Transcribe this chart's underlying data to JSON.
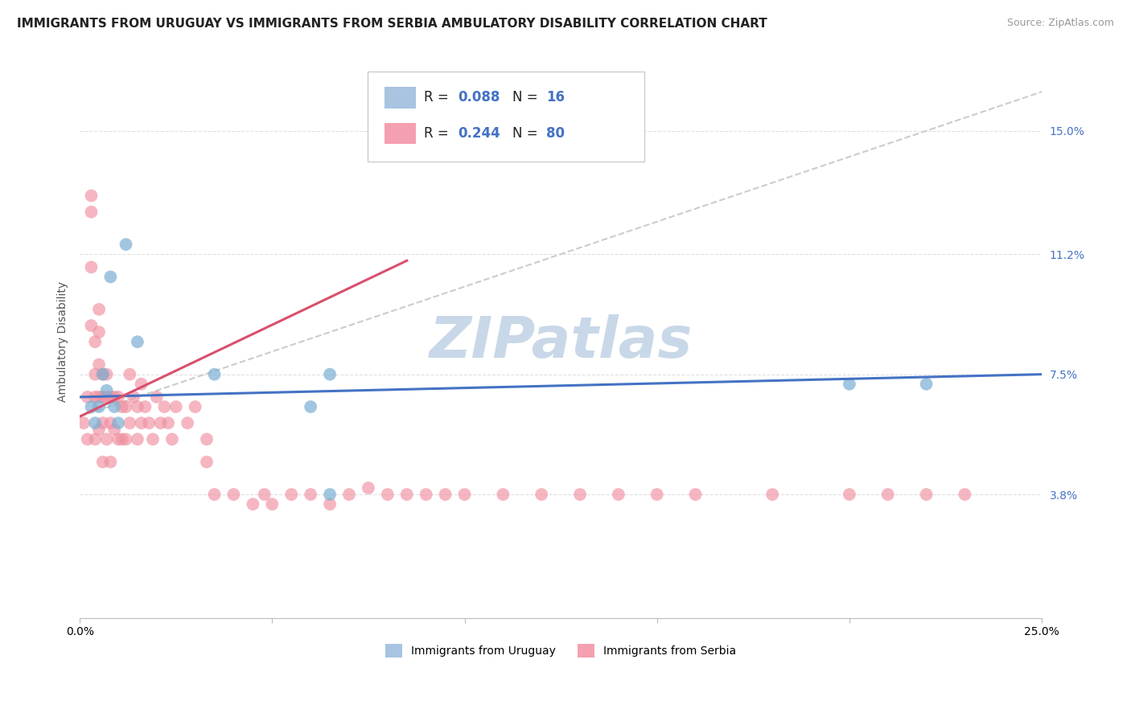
{
  "title": "IMMIGRANTS FROM URUGUAY VS IMMIGRANTS FROM SERBIA AMBULATORY DISABILITY CORRELATION CHART",
  "source": "Source: ZipAtlas.com",
  "xlabel_bottom_left": "0.0%",
  "xlabel_bottom_right": "25.0%",
  "ylabel_label": "Ambulatory Disability",
  "ytick_labels": [
    "15.0%",
    "11.2%",
    "7.5%",
    "3.8%"
  ],
  "ytick_values": [
    0.15,
    0.112,
    0.075,
    0.038
  ],
  "xlim": [
    0.0,
    0.25
  ],
  "ylim": [
    0.0,
    0.17
  ],
  "legend_labels": [
    "Immigrants from Uruguay",
    "Immigrants from Serbia"
  ],
  "R_uruguay": 0.088,
  "N_uruguay": 16,
  "R_serbia": 0.244,
  "N_serbia": 80,
  "color_uruguay": "#a8c4e0",
  "color_serbia": "#f5a0b0",
  "line_color_uruguay": "#4472c4",
  "line_color_serbia": "#d94f6e",
  "scatter_color_uruguay": "#7bafd4",
  "scatter_color_serbia": "#f090a0",
  "background_color": "#ffffff",
  "grid_color": "#dddddd",
  "title_fontsize": 11,
  "axis_fontsize": 10,
  "tick_fontsize": 10,
  "watermark_text": "ZIPatlas",
  "watermark_color": "#c8d8e8",
  "watermark_fontsize": 52,
  "uruguay_x": [
    0.003,
    0.004,
    0.005,
    0.006,
    0.007,
    0.008,
    0.009,
    0.01,
    0.012,
    0.015,
    0.035,
    0.06,
    0.065,
    0.065,
    0.2,
    0.22
  ],
  "uruguay_y": [
    0.065,
    0.06,
    0.065,
    0.075,
    0.07,
    0.105,
    0.065,
    0.06,
    0.115,
    0.085,
    0.075,
    0.065,
    0.038,
    0.075,
    0.072,
    0.072
  ],
  "serbia_x": [
    0.001,
    0.002,
    0.002,
    0.003,
    0.003,
    0.003,
    0.003,
    0.004,
    0.004,
    0.004,
    0.004,
    0.005,
    0.005,
    0.005,
    0.005,
    0.005,
    0.006,
    0.006,
    0.006,
    0.006,
    0.007,
    0.007,
    0.007,
    0.008,
    0.008,
    0.008,
    0.009,
    0.009,
    0.01,
    0.01,
    0.011,
    0.011,
    0.012,
    0.012,
    0.013,
    0.013,
    0.014,
    0.015,
    0.015,
    0.016,
    0.016,
    0.017,
    0.018,
    0.019,
    0.02,
    0.021,
    0.022,
    0.023,
    0.024,
    0.025,
    0.028,
    0.03,
    0.033,
    0.033,
    0.035,
    0.04,
    0.045,
    0.048,
    0.05,
    0.055,
    0.06,
    0.065,
    0.07,
    0.075,
    0.08,
    0.085,
    0.09,
    0.095,
    0.1,
    0.11,
    0.12,
    0.13,
    0.14,
    0.15,
    0.16,
    0.18,
    0.2,
    0.21,
    0.22,
    0.23
  ],
  "serbia_y": [
    0.06,
    0.068,
    0.055,
    0.13,
    0.125,
    0.108,
    0.09,
    0.085,
    0.075,
    0.068,
    0.055,
    0.095,
    0.088,
    0.078,
    0.068,
    0.058,
    0.075,
    0.068,
    0.06,
    0.048,
    0.075,
    0.068,
    0.055,
    0.068,
    0.06,
    0.048,
    0.068,
    0.058,
    0.068,
    0.055,
    0.065,
    0.055,
    0.065,
    0.055,
    0.075,
    0.06,
    0.068,
    0.065,
    0.055,
    0.072,
    0.06,
    0.065,
    0.06,
    0.055,
    0.068,
    0.06,
    0.065,
    0.06,
    0.055,
    0.065,
    0.06,
    0.065,
    0.055,
    0.048,
    0.038,
    0.038,
    0.035,
    0.038,
    0.035,
    0.038,
    0.038,
    0.035,
    0.038,
    0.04,
    0.038,
    0.038,
    0.038,
    0.038,
    0.038,
    0.038,
    0.038,
    0.038,
    0.038,
    0.038,
    0.038,
    0.038,
    0.038,
    0.038,
    0.038,
    0.038
  ],
  "ref_line": [
    [
      0.0,
      0.25
    ],
    [
      0.062,
      0.162
    ]
  ],
  "blue_line": [
    [
      0.0,
      0.25
    ],
    [
      0.068,
      0.075
    ]
  ],
  "pink_line": [
    [
      0.0,
      0.085
    ],
    [
      0.062,
      0.11
    ]
  ]
}
